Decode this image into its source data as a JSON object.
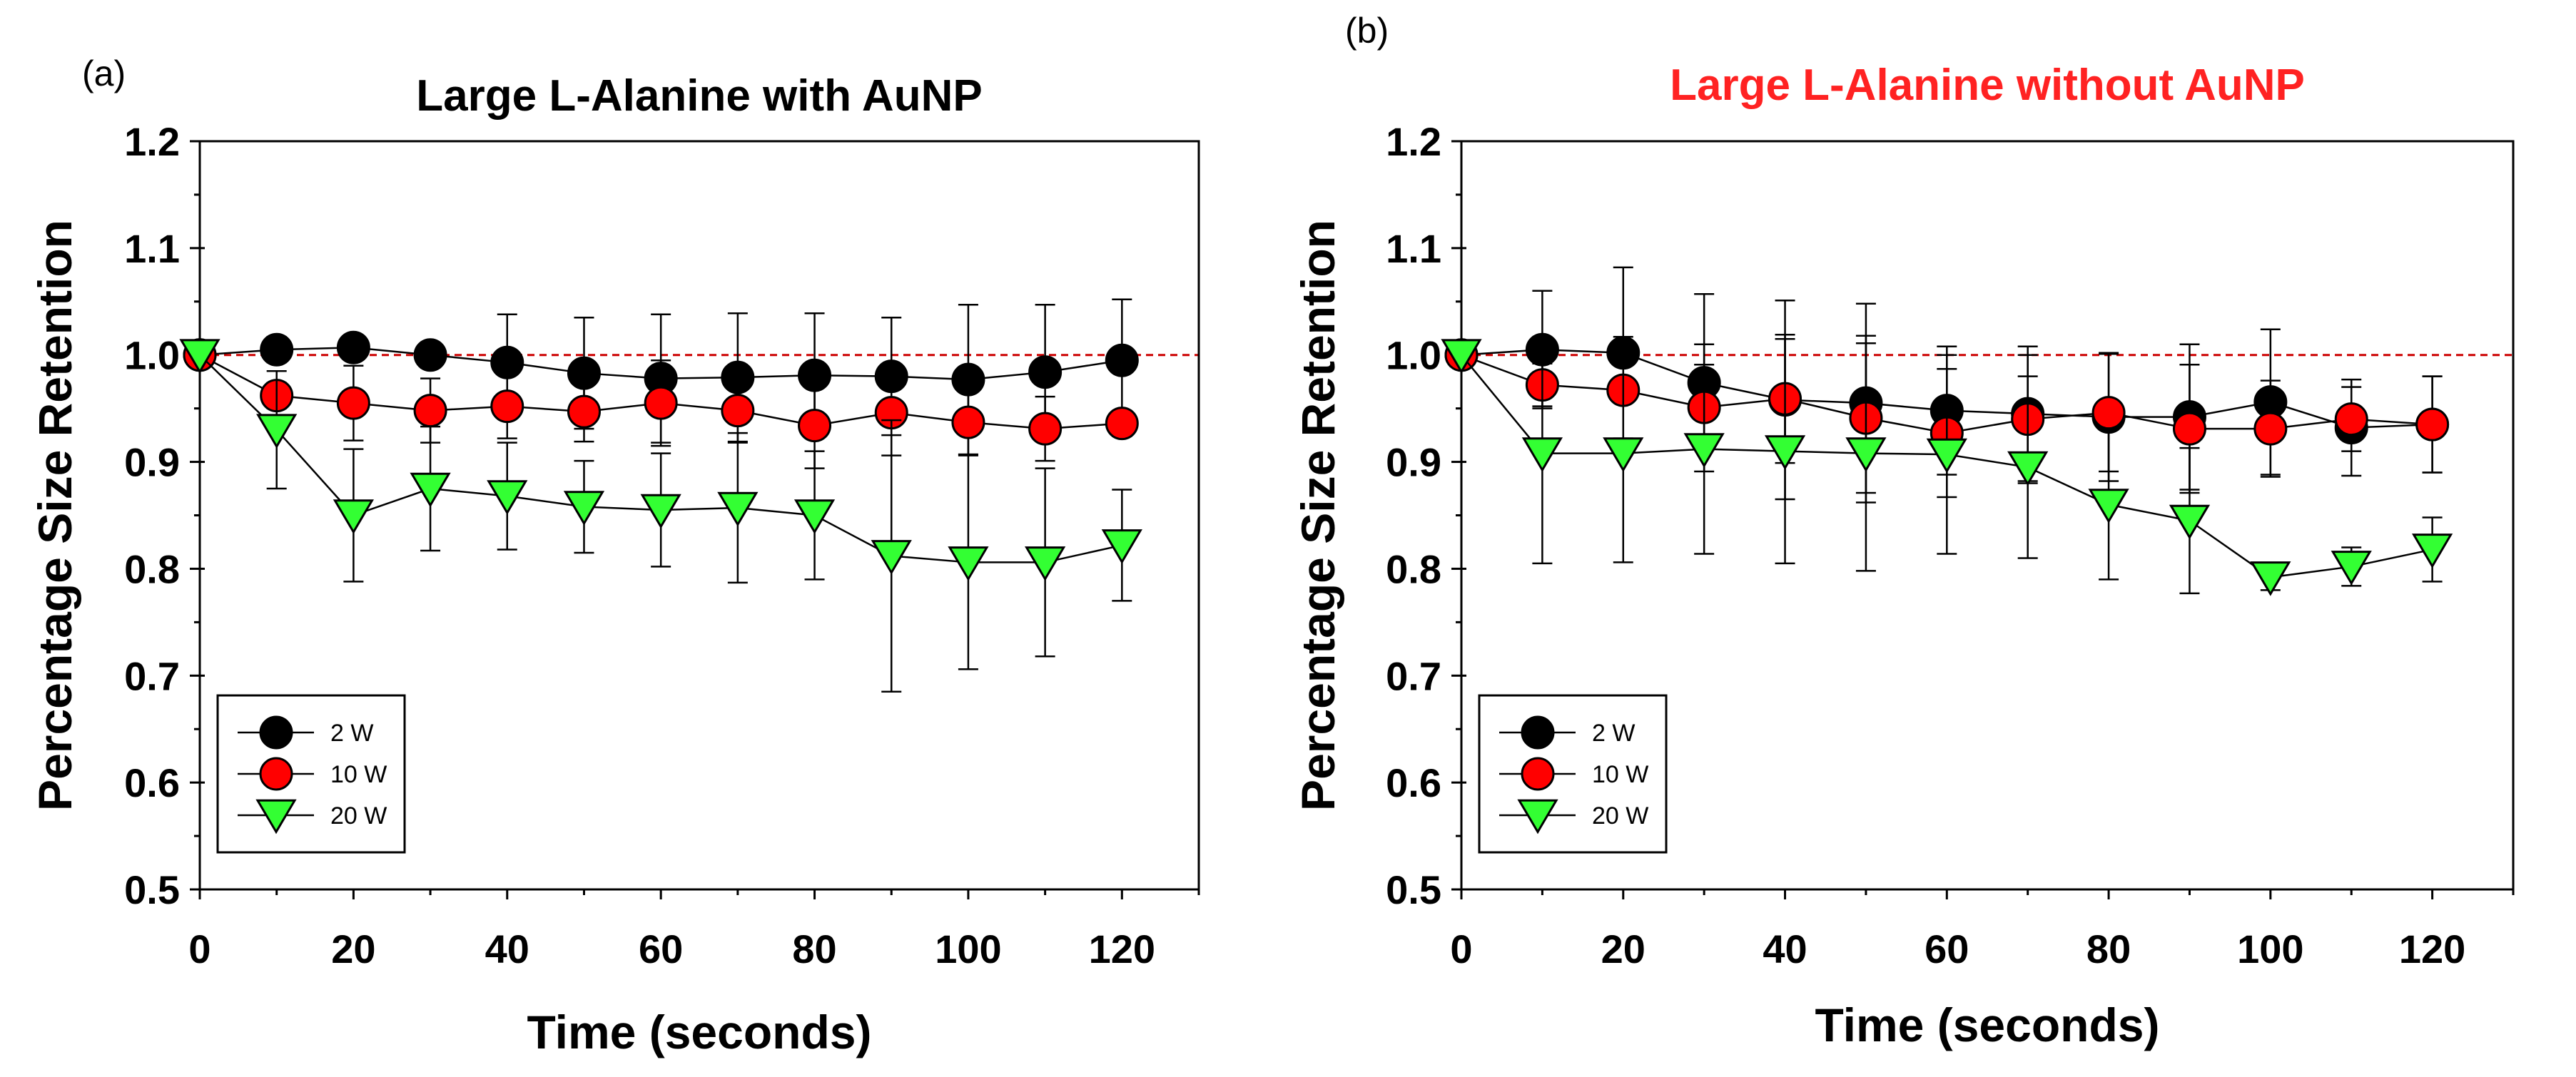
{
  "chart_data": [
    {
      "type": "line",
      "panel_label": "(a)",
      "title": "Large L-Alanine with AuNP",
      "title_color": "#000000",
      "xlabel": "Time (seconds)",
      "ylabel": "Percentage Size Retention",
      "xlim": [
        0,
        130
      ],
      "ylim": [
        0.5,
        1.2
      ],
      "xticks": [
        0,
        20,
        40,
        60,
        80,
        100,
        120
      ],
      "xtick_labels": [
        "0",
        "20",
        "40",
        "60",
        "80",
        "100",
        "120"
      ],
      "yticks": [
        0.5,
        0.6,
        0.7,
        0.8,
        0.9,
        1.0,
        1.1,
        1.2
      ],
      "ytick_labels": [
        "0.5",
        "0.6",
        "0.7",
        "0.8",
        "0.9",
        "1.0",
        "1.1",
        "1.2"
      ],
      "reference_line": {
        "y": 1.0,
        "color": "#cc0000",
        "style": "dashed"
      },
      "legend_position": "bottom-left",
      "x": [
        0,
        10,
        20,
        30,
        40,
        50,
        60,
        70,
        80,
        90,
        100,
        110,
        120
      ],
      "series": [
        {
          "name": "2 W",
          "marker": "circle",
          "color": "#000000",
          "values": [
            1.0,
            1.005,
            1.007,
            1.0,
            0.993,
            0.983,
            0.978,
            0.979,
            0.981,
            0.98,
            0.977,
            0.984,
            0.995
          ],
          "errors": [
            0.0,
            0.012,
            0.01,
            0.012,
            0.045,
            0.052,
            0.06,
            0.06,
            0.058,
            0.055,
            0.07,
            0.063,
            0.057
          ]
        },
        {
          "name": "10 W",
          "marker": "circle",
          "color": "#ff0000",
          "values": [
            1.0,
            0.962,
            0.955,
            0.948,
            0.952,
            0.947,
            0.955,
            0.948,
            0.934,
            0.946,
            0.937,
            0.931,
            0.936
          ],
          "errors": [
            0.0,
            0.012,
            0.035,
            0.03,
            0.03,
            0.028,
            0.04,
            0.03,
            0.04,
            0.04,
            0.03,
            0.03,
            0.012
          ]
        },
        {
          "name": "20 W",
          "marker": "triangle-down",
          "color": "#33ff33",
          "values": [
            1.0,
            0.93,
            0.85,
            0.875,
            0.868,
            0.858,
            0.855,
            0.857,
            0.85,
            0.812,
            0.806,
            0.806,
            0.822
          ],
          "errors": [
            0.0,
            0.055,
            0.062,
            0.058,
            0.05,
            0.043,
            0.053,
            0.07,
            0.06,
            0.127,
            0.1,
            0.088,
            0.052
          ]
        }
      ]
    },
    {
      "type": "line",
      "panel_label": "(b)",
      "title": "Large L-Alanine without AuNP",
      "title_color": "#ff2222",
      "xlabel": "Time (seconds)",
      "ylabel": "Percentage Size Retention",
      "xlim": [
        0,
        130
      ],
      "ylim": [
        0.5,
        1.2
      ],
      "xticks": [
        0,
        20,
        40,
        60,
        80,
        100,
        120
      ],
      "xtick_labels": [
        "0",
        "20",
        "40",
        "60",
        "80",
        "100",
        "120"
      ],
      "yticks": [
        0.5,
        0.6,
        0.7,
        0.8,
        0.9,
        1.0,
        1.1,
        1.2
      ],
      "ytick_labels": [
        "0.5",
        "0.6",
        "0.7",
        "0.8",
        "0.9",
        "1.0",
        "1.1",
        "1.2"
      ],
      "reference_line": {
        "y": 1.0,
        "color": "#cc0000",
        "style": "dashed"
      },
      "legend_position": "bottom-left",
      "x": [
        0,
        10,
        20,
        30,
        40,
        50,
        60,
        70,
        80,
        90,
        100,
        110,
        120
      ],
      "series": [
        {
          "name": "2 W",
          "marker": "circle",
          "color": "#000000",
          "values": [
            1.0,
            1.005,
            1.002,
            0.974,
            0.958,
            0.955,
            0.948,
            0.945,
            0.942,
            0.942,
            0.956,
            0.932,
            0.935
          ],
          "errors": [
            0.0,
            0.055,
            0.08,
            0.083,
            0.093,
            0.093,
            0.06,
            0.063,
            0.06,
            0.068,
            0.068,
            0.045,
            0.045
          ]
        },
        {
          "name": "10 W",
          "marker": "circle",
          "color": "#ff0000",
          "values": [
            1.0,
            0.972,
            0.967,
            0.951,
            0.959,
            0.941,
            0.927,
            0.94,
            0.946,
            0.931,
            0.931,
            0.94,
            0.935
          ],
          "errors": [
            0.0,
            0.02,
            0.05,
            0.04,
            0.06,
            0.07,
            0.06,
            0.06,
            0.055,
            0.06,
            0.045,
            0.03,
            0.045
          ]
        },
        {
          "name": "20 W",
          "marker": "triangle-down",
          "color": "#33ff33",
          "values": [
            1.0,
            0.908,
            0.908,
            0.912,
            0.91,
            0.908,
            0.907,
            0.895,
            0.86,
            0.845,
            0.792,
            0.802,
            0.818
          ],
          "errors": [
            0.0,
            0.103,
            0.102,
            0.098,
            0.105,
            0.11,
            0.093,
            0.085,
            0.07,
            0.068,
            0.012,
            0.018,
            0.03
          ]
        }
      ]
    }
  ]
}
